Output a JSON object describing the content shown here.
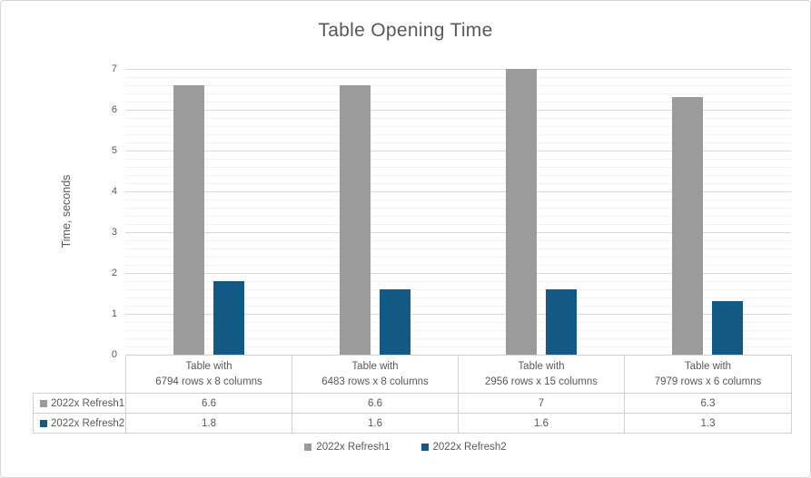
{
  "chart_data": {
    "type": "bar",
    "title": "Table Opening Time",
    "ylabel": "Time, seconds",
    "ylim": [
      0,
      7
    ],
    "yticks": [
      0,
      1,
      2,
      3,
      4,
      5,
      6,
      7
    ],
    "minor_gridline_unit": 0.2,
    "grid": "major and minor horizontal gridlines",
    "legend_position": "bottom",
    "has_data_table": true,
    "categories": [
      {
        "line1": "Table with",
        "line2": "6794 rows x 8 columns"
      },
      {
        "line1": "Table with",
        "line2": "6483 rows x 8 columns"
      },
      {
        "line1": "Table with",
        "line2": "2956 rows x 15 columns"
      },
      {
        "line1": "Table with",
        "line2": "7979 rows x 6 columns"
      }
    ],
    "series": [
      {
        "name": "2022x Refresh1",
        "color": "#9B9B9B",
        "values": [
          6.6,
          6.6,
          7,
          6.3
        ]
      },
      {
        "name": "2022x Refresh2",
        "color": "#125A85",
        "values": [
          1.8,
          1.6,
          1.6,
          1.3
        ]
      }
    ]
  },
  "colors": {
    "text": "#595959",
    "major_gridline": "#D9D9D9",
    "minor_gridline": "#F2F2F2",
    "table_border": "#D0D0D0",
    "frame_border": "#D5D5D5"
  }
}
